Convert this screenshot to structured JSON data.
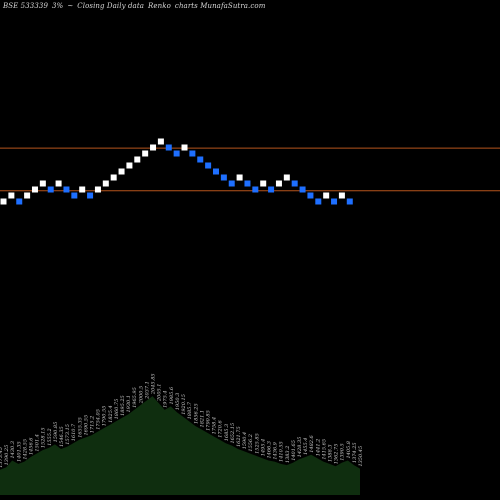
{
  "header": {
    "symbol": "BSE 533339",
    "change": "3%",
    "arrow": "~",
    "caption": "Closing Daily data",
    "chart_kind": "Renko",
    "brand": "charts MunafaSutra.com"
  },
  "colors": {
    "background": "#000000",
    "up_brick": "#ffffff",
    "down_brick": "#1e6fff",
    "reference_line": "#b5541c",
    "volume_fill": "#0f2e0f"
  },
  "chart_data": {
    "type": "renko",
    "brick_levels": [
      10,
      11,
      10,
      11,
      12,
      13,
      12,
      13,
      12,
      11,
      12,
      11,
      12,
      13,
      14,
      15,
      16,
      17,
      18,
      19,
      20,
      19,
      18,
      19,
      18,
      17,
      16,
      15,
      14,
      13,
      14,
      13,
      12,
      13,
      12,
      13,
      14,
      13,
      12,
      11,
      10,
      11,
      10,
      11,
      10
    ],
    "brick_direction": [
      "up",
      "up",
      "down",
      "up",
      "up",
      "up",
      "down",
      "up",
      "down",
      "down",
      "up",
      "down",
      "up",
      "up",
      "up",
      "up",
      "up",
      "up",
      "up",
      "up",
      "up",
      "down",
      "down",
      "up",
      "down",
      "down",
      "down",
      "down",
      "down",
      "down",
      "up",
      "down",
      "down",
      "up",
      "down",
      "up",
      "up",
      "down",
      "down",
      "down",
      "down",
      "up",
      "down",
      "up",
      "down"
    ],
    "reference_levels": [
      18.4,
      11.3
    ],
    "volume_labels": [
      "1373.45",
      "1390.25",
      "1430.3",
      "1401.35",
      "1428.55",
      "1456.6",
      "1501.4",
      "1528.15",
      "1555.2",
      "1590.85",
      "1546.35",
      "1573.15",
      "1610.7",
      "1655.35",
      "1690.55",
      "1715.2",
      "1754.05",
      "1790.55",
      "1825.4",
      "1860.75",
      "1895.25",
      "1930.1",
      "1965.95",
      "2000.5",
      "2037.1",
      "2045.85",
      "2005.1",
      "1975.4",
      "1985.6",
      "1950.3",
      "1920.15",
      "1885.7",
      "1856.25",
      "1821.1",
      "1790.85",
      "1758.4",
      "1720.6",
      "1685.3",
      "1652.15",
      "1621.75",
      "1590.4",
      "1556.2",
      "1525.85",
      "1495.4",
      "1466.3",
      "1436.9",
      "1410.55",
      "1383.2",
      "1401.65",
      "1428.35",
      "1455.4",
      "1482.6",
      "1441.2",
      "1415.65",
      "1388.3",
      "1362.75",
      "1390.5",
      "1405.8",
      "1374.25",
      "1350.45"
    ],
    "volume_values": [
      22,
      24,
      30,
      27,
      29,
      33,
      36,
      39,
      41,
      44,
      40,
      42,
      45,
      48,
      50,
      52,
      55,
      58,
      61,
      64,
      67,
      70,
      74,
      78,
      82,
      86,
      80,
      74,
      77,
      72,
      68,
      64,
      60,
      57,
      54,
      51,
      48,
      45,
      43,
      40,
      38,
      36,
      34,
      32,
      30,
      29,
      27,
      26,
      28,
      31,
      33,
      35,
      32,
      29,
      27,
      25,
      28,
      30,
      26,
      23
    ],
    "grid": false,
    "legend": "none"
  }
}
